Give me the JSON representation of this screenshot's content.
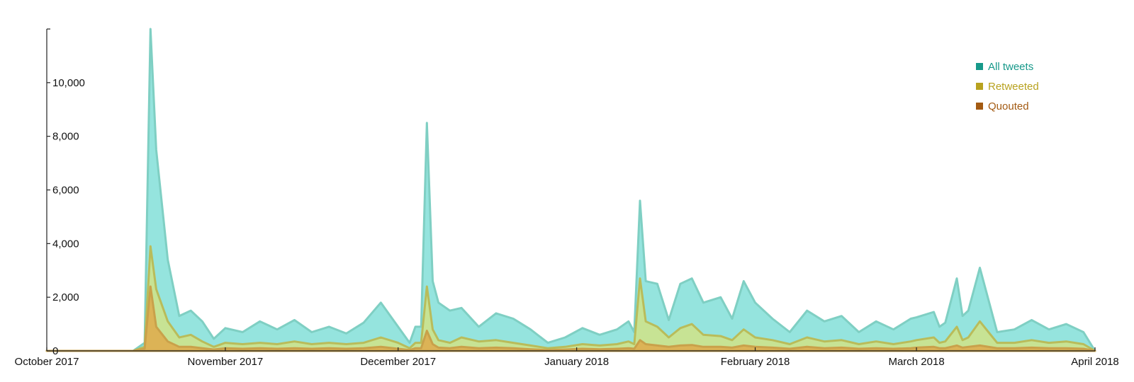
{
  "chart_data": {
    "type": "area",
    "x": [
      "2017-10-01",
      "2017-10-04",
      "2017-10-07",
      "2017-10-10",
      "2017-10-13",
      "2017-10-16",
      "2017-10-18",
      "2017-10-19",
      "2017-10-20",
      "2017-10-22",
      "2017-10-24",
      "2017-10-26",
      "2017-10-28",
      "2017-10-30",
      "2017-11-01",
      "2017-11-04",
      "2017-11-07",
      "2017-11-10",
      "2017-11-13",
      "2017-11-16",
      "2017-11-19",
      "2017-11-22",
      "2017-11-25",
      "2017-11-28",
      "2017-12-01",
      "2017-12-03",
      "2017-12-04",
      "2017-12-05",
      "2017-12-06",
      "2017-12-07",
      "2017-12-08",
      "2017-12-10",
      "2017-12-12",
      "2017-12-15",
      "2017-12-18",
      "2017-12-21",
      "2017-12-24",
      "2017-12-27",
      "2017-12-30",
      "2018-01-02",
      "2018-01-05",
      "2018-01-08",
      "2018-01-10",
      "2018-01-11",
      "2018-01-12",
      "2018-01-13",
      "2018-01-15",
      "2018-01-17",
      "2018-01-19",
      "2018-01-21",
      "2018-01-23",
      "2018-01-26",
      "2018-01-28",
      "2018-01-30",
      "2018-02-01",
      "2018-02-04",
      "2018-02-07",
      "2018-02-10",
      "2018-02-13",
      "2018-02-16",
      "2018-02-19",
      "2018-02-22",
      "2018-02-25",
      "2018-02-28",
      "2018-03-01",
      "2018-03-04",
      "2018-03-05",
      "2018-03-06",
      "2018-03-08",
      "2018-03-09",
      "2018-03-10",
      "2018-03-12",
      "2018-03-15",
      "2018-03-18",
      "2018-03-21",
      "2018-03-24",
      "2018-03-27",
      "2018-03-30",
      "2018-04-01"
    ],
    "series": [
      {
        "name": "All tweets",
        "color": "#17998a",
        "fill": "#8fe3dc",
        "stroke": "#7fcfc3",
        "values": [
          0,
          0,
          0,
          0,
          0,
          0,
          300,
          12000,
          7500,
          3400,
          1300,
          1500,
          1100,
          450,
          850,
          700,
          1100,
          800,
          1150,
          700,
          900,
          650,
          1050,
          1800,
          900,
          300,
          900,
          900,
          8500,
          2600,
          1800,
          1500,
          1600,
          900,
          1400,
          1200,
          800,
          300,
          500,
          850,
          600,
          800,
          1100,
          700,
          5600,
          2600,
          2500,
          1150,
          2500,
          2700,
          1800,
          2000,
          1200,
          2600,
          1800,
          1200,
          700,
          1500,
          1100,
          1300,
          700,
          1100,
          800,
          1200,
          1250,
          1450,
          900,
          1050,
          2700,
          1300,
          1500,
          3100,
          700,
          800,
          1150,
          800,
          1000,
          700,
          0
        ]
      },
      {
        "name": "Retweeted",
        "color": "#b8a21f",
        "fill": "#c9e38f",
        "stroke": "#b9bc5a",
        "values": [
          0,
          0,
          0,
          0,
          0,
          0,
          150,
          3900,
          2300,
          1100,
          500,
          600,
          350,
          150,
          300,
          250,
          300,
          250,
          350,
          250,
          300,
          250,
          300,
          500,
          300,
          100,
          300,
          300,
          2400,
          800,
          400,
          300,
          500,
          350,
          400,
          300,
          200,
          100,
          150,
          250,
          200,
          250,
          350,
          250,
          2700,
          1100,
          900,
          500,
          850,
          1000,
          600,
          550,
          400,
          800,
          500,
          400,
          250,
          500,
          350,
          400,
          250,
          350,
          250,
          350,
          400,
          500,
          300,
          350,
          900,
          400,
          500,
          1100,
          300,
          300,
          400,
          300,
          350,
          250,
          0
        ]
      },
      {
        "name": "Quouted",
        "color": "#a35a12",
        "fill": "#ddb052",
        "stroke": "#c9a14a",
        "values": [
          0,
          0,
          0,
          0,
          0,
          0,
          80,
          2400,
          900,
          350,
          150,
          150,
          100,
          50,
          100,
          80,
          100,
          80,
          100,
          80,
          100,
          80,
          100,
          150,
          80,
          30,
          100,
          100,
          750,
          250,
          120,
          100,
          150,
          100,
          120,
          100,
          60,
          30,
          50,
          80,
          60,
          80,
          100,
          80,
          400,
          250,
          200,
          150,
          200,
          220,
          150,
          150,
          120,
          200,
          150,
          120,
          80,
          150,
          100,
          120,
          80,
          100,
          80,
          100,
          120,
          150,
          100,
          100,
          200,
          120,
          150,
          200,
          100,
          100,
          120,
          100,
          100,
          80,
          0
        ]
      }
    ],
    "xlim": [
      "2017-10-01",
      "2018-04-01"
    ],
    "ylim": [
      0,
      12000
    ],
    "yticks": [
      0,
      2000,
      4000,
      6000,
      8000,
      10000
    ],
    "ytick_labels": [
      "0",
      "2,000",
      "4,000",
      "6,000",
      "8,000",
      "10,000"
    ],
    "xticks": [
      "2017-10-01",
      "2017-11-01",
      "2017-12-01",
      "2018-01-01",
      "2018-02-01",
      "2018-03-01",
      "2018-04-01"
    ],
    "xtick_labels": [
      "October 2017",
      "November 2017",
      "December 2017",
      "January 2018",
      "February 2018",
      "March 2018",
      "April 2018"
    ],
    "grid": false,
    "legend_position": "top-right"
  }
}
